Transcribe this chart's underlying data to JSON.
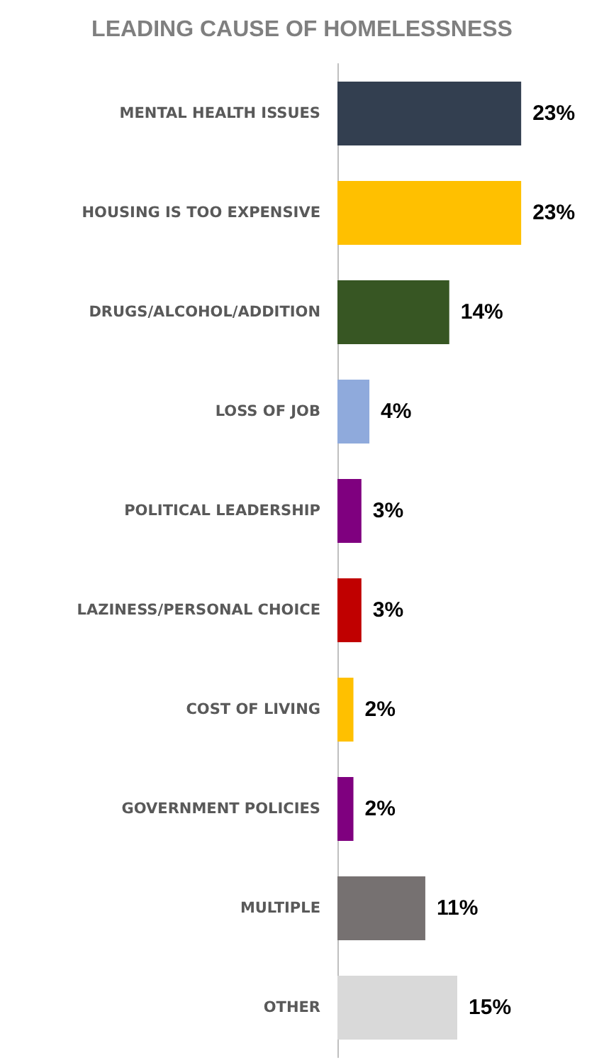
{
  "chart_data": {
    "type": "bar",
    "orientation": "horizontal",
    "title": "LEADING CAUSE OF HOMELESSNESS",
    "categories": [
      "MENTAL HEALTH ISSUES",
      "HOUSING IS TOO EXPENSIVE",
      "DRUGS/ALCOHOL/ADDITION",
      "LOSS OF JOB",
      "POLITICAL LEADERSHIP",
      "LAZINESS/PERSONAL CHOICE",
      "COST OF LIVING",
      "GOVERNMENT POLICIES",
      "MULTIPLE",
      "OTHER"
    ],
    "values": [
      23,
      23,
      14,
      4,
      3,
      3,
      2,
      2,
      11,
      15
    ],
    "value_labels": [
      "23%",
      "23%",
      "14%",
      "4%",
      "3%",
      "3%",
      "2%",
      "2%",
      "11%",
      "15%"
    ],
    "colors": [
      "#333f50",
      "#ffc000",
      "#375623",
      "#8faadc",
      "#7f007f",
      "#c00000",
      "#ffc000",
      "#7f007f",
      "#767171",
      "#d9d9d9"
    ],
    "data_labels": false
  }
}
